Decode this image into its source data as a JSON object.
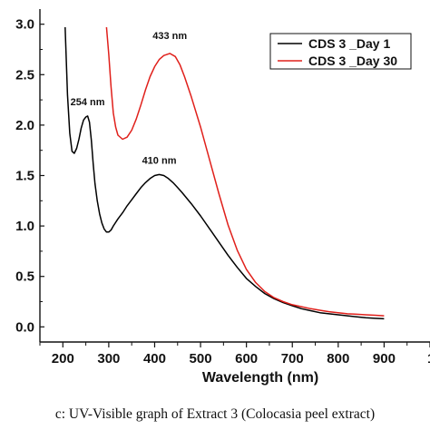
{
  "chart_data": {
    "type": "line",
    "xlabel": "Wavelength (nm)",
    "ylabel": "",
    "xlim": [
      150,
      1000
    ],
    "ylim": [
      -0.15,
      3.15
    ],
    "x_ticks": [
      200,
      300,
      400,
      500,
      600,
      700,
      800,
      900
    ],
    "x_tick_labels": [
      "200",
      "300",
      "400",
      "500",
      "600",
      "700",
      "800",
      "900"
    ],
    "y_ticks": [
      0.0,
      0.5,
      1.0,
      1.5,
      2.0,
      2.5,
      3.0
    ],
    "y_tick_labels": [
      "0.0",
      "0.5",
      "1.0",
      "1.5",
      "2.0",
      "2.5",
      "3.0"
    ],
    "extra_right_tick_label": "1",
    "grid": false,
    "legend_position": "top-right",
    "series": [
      {
        "name": "CDS 3 _Day 1",
        "color": "#000000",
        "x": [
          205,
          210,
          215,
          220,
          225,
          230,
          235,
          240,
          245,
          250,
          254,
          258,
          262,
          266,
          270,
          275,
          280,
          285,
          290,
          295,
          300,
          305,
          310,
          320,
          330,
          340,
          350,
          360,
          370,
          380,
          390,
          400,
          410,
          420,
          430,
          440,
          450,
          460,
          480,
          500,
          520,
          540,
          560,
          580,
          600,
          620,
          640,
          660,
          680,
          700,
          720,
          740,
          760,
          780,
          800,
          820,
          840,
          860,
          880,
          900
        ],
        "y": [
          2.97,
          2.3,
          1.92,
          1.74,
          1.72,
          1.77,
          1.86,
          1.97,
          2.05,
          2.08,
          2.09,
          2.03,
          1.85,
          1.62,
          1.42,
          1.25,
          1.12,
          1.03,
          0.97,
          0.94,
          0.94,
          0.96,
          1.0,
          1.07,
          1.13,
          1.2,
          1.26,
          1.32,
          1.38,
          1.43,
          1.47,
          1.5,
          1.51,
          1.5,
          1.47,
          1.43,
          1.38,
          1.33,
          1.22,
          1.1,
          0.97,
          0.84,
          0.71,
          0.59,
          0.48,
          0.4,
          0.33,
          0.28,
          0.24,
          0.21,
          0.18,
          0.16,
          0.14,
          0.13,
          0.12,
          0.11,
          0.1,
          0.09,
          0.085,
          0.08
        ]
      },
      {
        "name": "CDS 3 _Day 30",
        "color": "#e0201b",
        "x": [
          295,
          300,
          305,
          310,
          315,
          320,
          330,
          340,
          350,
          360,
          370,
          380,
          390,
          400,
          410,
          420,
          433,
          445,
          455,
          465,
          480,
          500,
          520,
          540,
          560,
          580,
          600,
          620,
          640,
          660,
          680,
          700,
          720,
          740,
          760,
          780,
          800,
          820,
          840,
          860,
          880,
          900
        ],
        "y": [
          2.97,
          2.7,
          2.38,
          2.12,
          1.98,
          1.9,
          1.86,
          1.88,
          1.95,
          2.06,
          2.2,
          2.35,
          2.48,
          2.58,
          2.65,
          2.69,
          2.71,
          2.68,
          2.6,
          2.48,
          2.28,
          1.98,
          1.65,
          1.32,
          1.01,
          0.76,
          0.57,
          0.44,
          0.35,
          0.29,
          0.25,
          0.22,
          0.2,
          0.18,
          0.165,
          0.15,
          0.14,
          0.13,
          0.125,
          0.12,
          0.115,
          0.11
        ]
      }
    ],
    "annotations": [
      {
        "text": "254 nm",
        "x": 254,
        "y": 2.09
      },
      {
        "text": "410 nm",
        "x": 410,
        "y": 1.51
      },
      {
        "text": "433 nm",
        "x": 433,
        "y": 2.71
      }
    ]
  },
  "caption": "c: UV-Visible graph of Extract 3 (Colocasia peel extract)"
}
